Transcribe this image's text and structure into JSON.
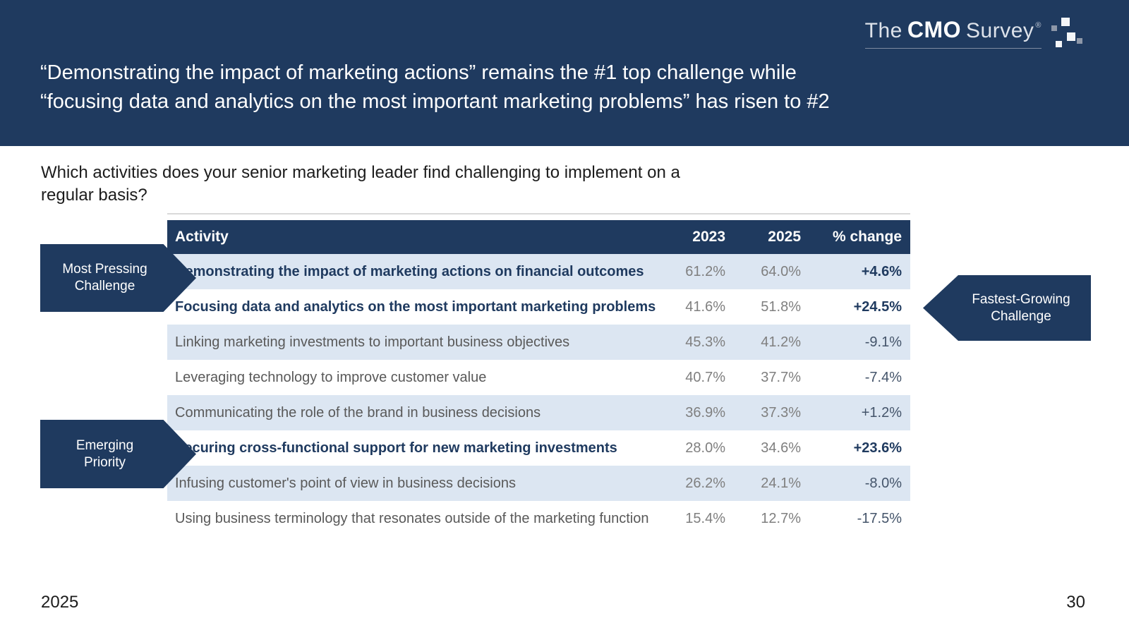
{
  "header": {
    "logo": {
      "word_the": "The",
      "word_cmo": "CMO",
      "word_survey": "Survey",
      "registered": "®"
    },
    "title_line1": "“Demonstrating the impact of marketing actions” remains the #1 top challenge while",
    "title_line2": "“focusing data and analytics on the most important marketing problems” has risen to #2"
  },
  "question": {
    "line1": "Which activities does your senior marketing leader find challenging to implement on a",
    "line2": "regular basis?"
  },
  "callouts": {
    "most_pressing": {
      "line1": "Most Pressing",
      "line2": "Challenge"
    },
    "emerging": {
      "line1": "Emerging",
      "line2": "Priority"
    },
    "fastest_growing": {
      "line1": "Fastest-Growing",
      "line2": "Challenge"
    }
  },
  "table": {
    "columns": {
      "activity": "Activity",
      "y2023": "2023",
      "y2025": "2025",
      "change": "% change"
    },
    "rows": [
      {
        "activity": "Demonstrating the impact of marketing actions on financial outcomes",
        "y2023": "61.2%",
        "y2025": "64.0%",
        "change": "+4.6%",
        "emphasis": true
      },
      {
        "activity": "Focusing data and analytics on the most important marketing problems",
        "y2023": "41.6%",
        "y2025": "51.8%",
        "change": "+24.5%",
        "emphasis": true
      },
      {
        "activity": "Linking marketing investments to important business objectives",
        "y2023": "45.3%",
        "y2025": "41.2%",
        "change": "-9.1%",
        "emphasis": false
      },
      {
        "activity": "Leveraging technology to improve customer value",
        "y2023": "40.7%",
        "y2025": "37.7%",
        "change": "-7.4%",
        "emphasis": false
      },
      {
        "activity": "Communicating the role of the brand in business decisions",
        "y2023": "36.9%",
        "y2025": "37.3%",
        "change": "+1.2%",
        "emphasis": false
      },
      {
        "activity": "Securing cross-functional support for new marketing investments",
        "y2023": "28.0%",
        "y2025": "34.6%",
        "change": "+23.6%",
        "emphasis": true
      },
      {
        "activity": "Infusing customer's point of view in business decisions",
        "y2023": "26.2%",
        "y2025": "24.1%",
        "change": "-8.0%",
        "emphasis": false
      },
      {
        "activity": "Using business terminology that resonates outside of the marketing function",
        "y2023": "15.4%",
        "y2025": "12.7%",
        "change": "-17.5%",
        "emphasis": false
      }
    ]
  },
  "footer": {
    "year": "2025",
    "page": "30"
  },
  "colors": {
    "navy": "#1f3a5f",
    "row_highlight": "#dce6f2",
    "activity_gray": "#595959",
    "number_gray": "#7f7f7f",
    "change_slate": "#44546a",
    "white": "#ffffff"
  }
}
